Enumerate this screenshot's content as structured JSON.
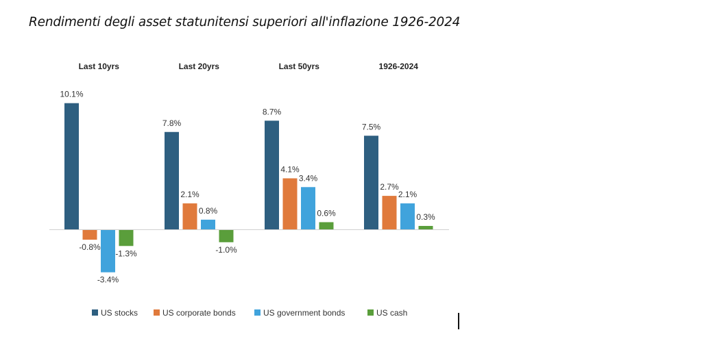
{
  "page": {
    "title": "Rendimenti degli asset statunitensi superiori all'inflazione 1926-2024"
  },
  "chart_data": {
    "type": "bar",
    "title": "",
    "xlabel": "",
    "ylabel": "",
    "categories": [
      "Last 10yrs",
      "Last 20yrs",
      "Last 50yrs",
      "1926-2024"
    ],
    "series": [
      {
        "name": "US stocks",
        "color": "#2e5f80",
        "values": [
          10.1,
          7.8,
          8.7,
          7.5
        ]
      },
      {
        "name": "US corporate bonds",
        "color": "#e07a3c",
        "values": [
          -0.8,
          2.1,
          4.1,
          2.7
        ]
      },
      {
        "name": "US government bonds",
        "color": "#40a3dc",
        "values": [
          -3.4,
          0.8,
          3.4,
          2.1
        ]
      },
      {
        "name": "US cash",
        "color": "#5a9e3b",
        "values": [
          -1.3,
          -1.0,
          0.6,
          0.3
        ]
      }
    ],
    "value_suffix": "%",
    "legend_position": "bottom",
    "grid": false
  }
}
